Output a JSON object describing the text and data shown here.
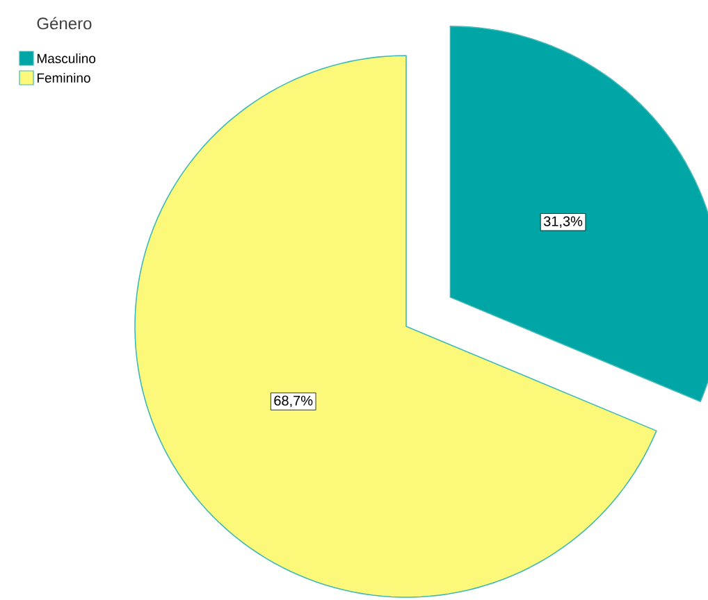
{
  "chart_data": {
    "type": "pie",
    "legend_title": "Género",
    "categories": [
      "Masculino",
      "Feminino"
    ],
    "values": [
      31.3,
      68.7
    ],
    "colors": [
      "#00a5a5",
      "#fbf87a"
    ],
    "value_labels": [
      "31,3%",
      "68,7%"
    ],
    "legend": "top left"
  }
}
